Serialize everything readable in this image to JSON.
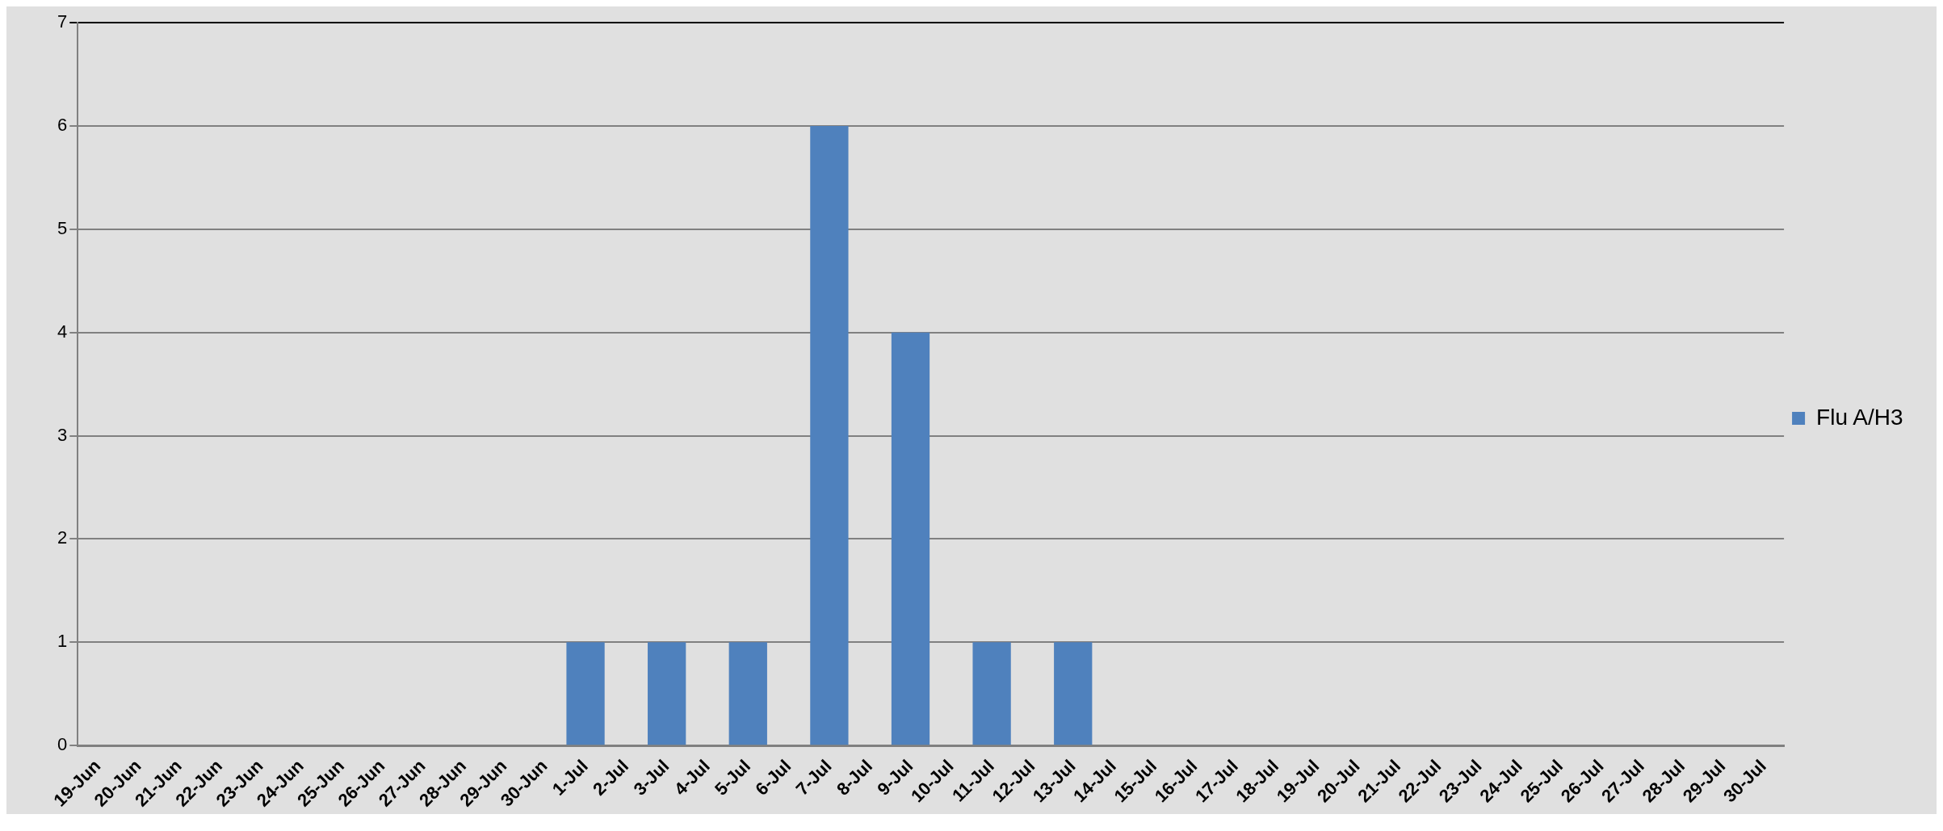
{
  "chart_data": {
    "type": "bar",
    "categories": [
      "19-Jun",
      "20-Jun",
      "21-Jun",
      "22-Jun",
      "23-Jun",
      "24-Jun",
      "25-Jun",
      "26-Jun",
      "27-Jun",
      "28-Jun",
      "29-Jun",
      "30-Jun",
      "1-Jul",
      "2-Jul",
      "3-Jul",
      "4-Jul",
      "5-Jul",
      "6-Jul",
      "7-Jul",
      "8-Jul",
      "9-Jul",
      "10-Jul",
      "11-Jul",
      "12-Jul",
      "13-Jul",
      "14-Jul",
      "15-Jul",
      "16-Jul",
      "17-Jul",
      "18-Jul",
      "19-Jul",
      "20-Jul",
      "21-Jul",
      "22-Jul",
      "23-Jul",
      "24-Jul",
      "25-Jul",
      "26-Jul",
      "27-Jul",
      "28-Jul",
      "29-Jul",
      "30-Jul"
    ],
    "series": [
      {
        "name": "Flu A/H3",
        "color": "#4f81bd",
        "values": [
          0,
          0,
          0,
          0,
          0,
          0,
          0,
          0,
          0,
          0,
          0,
          0,
          1,
          0,
          1,
          0,
          1,
          0,
          6,
          0,
          4,
          0,
          1,
          0,
          1,
          0,
          0,
          0,
          0,
          0,
          0,
          0,
          0,
          0,
          0,
          0,
          0,
          0,
          0,
          0,
          0,
          0
        ]
      }
    ],
    "ylim": [
      0,
      7
    ],
    "yticks": [
      0,
      1,
      2,
      3,
      4,
      5,
      6,
      7
    ],
    "grid": "y",
    "legend": "right"
  }
}
